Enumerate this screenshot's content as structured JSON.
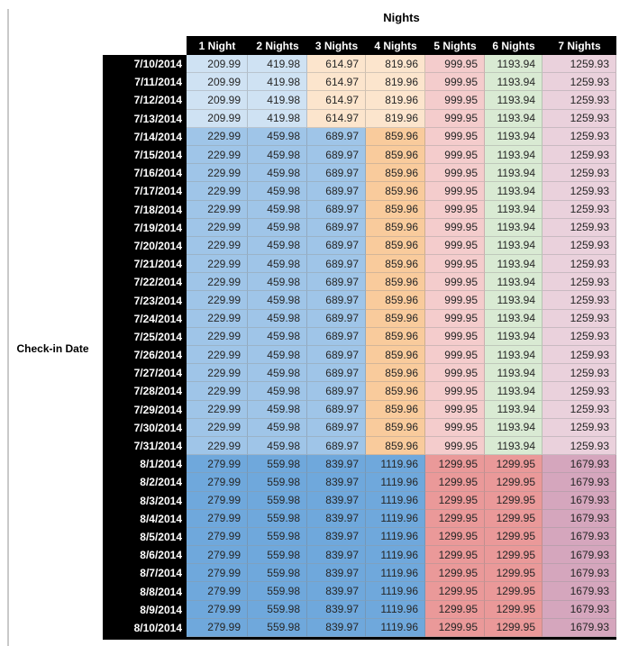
{
  "title": "Nights",
  "row_axis_label": "Check-in Date",
  "palette": {
    "light_blue": "#CFE2F3",
    "medium_blue": "#9FC5E8",
    "dark_blue": "#6FA8DC",
    "light_orange": "#FCE5CD",
    "medium_orange": "#F9CB9C",
    "light_red": "#F4CCCC",
    "medium_red": "#EA9999",
    "light_green": "#D9EAD3",
    "light_magenta": "#EAD1DC",
    "medium_magenta": "#D5A6BD",
    "header_bg": "#000000",
    "header_text": "#FFFFFF",
    "cell_text": "#262626"
  },
  "chart_data": {
    "type": "heatmap",
    "title": "Nights",
    "row_label": "Check-in Date",
    "columns": [
      "1 Night",
      "2 Nights",
      "3 Nights",
      "4 Nights",
      "5 Nights",
      "6 Nights",
      "7 Nights"
    ],
    "color_groups": {
      "A": [
        "#CFE2F3",
        "#CFE2F3",
        "#FCE5CD",
        "#FCE5CD",
        "#F4CCCC",
        "#D9EAD3",
        "#EAD1DC"
      ],
      "B": [
        "#9FC5E8",
        "#9FC5E8",
        "#9FC5E8",
        "#F9CB9C",
        "#F4CCCC",
        "#D9EAD3",
        "#EAD1DC"
      ],
      "C": [
        "#6FA8DC",
        "#6FA8DC",
        "#6FA8DC",
        "#6FA8DC",
        "#EA9999",
        "#EA9999",
        "#D5A6BD"
      ]
    },
    "rows": [
      {
        "date": "7/10/2014",
        "fill": "A",
        "values": [
          209.99,
          419.98,
          614.97,
          819.96,
          999.95,
          1193.94,
          1259.93
        ]
      },
      {
        "date": "7/11/2014",
        "fill": "A",
        "values": [
          209.99,
          419.98,
          614.97,
          819.96,
          999.95,
          1193.94,
          1259.93
        ]
      },
      {
        "date": "7/12/2014",
        "fill": "A",
        "values": [
          209.99,
          419.98,
          614.97,
          819.96,
          999.95,
          1193.94,
          1259.93
        ]
      },
      {
        "date": "7/13/2014",
        "fill": "A",
        "values": [
          209.99,
          419.98,
          614.97,
          819.96,
          999.95,
          1193.94,
          1259.93
        ]
      },
      {
        "date": "7/14/2014",
        "fill": "B",
        "values": [
          229.99,
          459.98,
          689.97,
          859.96,
          999.95,
          1193.94,
          1259.93
        ]
      },
      {
        "date": "7/15/2014",
        "fill": "B",
        "values": [
          229.99,
          459.98,
          689.97,
          859.96,
          999.95,
          1193.94,
          1259.93
        ]
      },
      {
        "date": "7/16/2014",
        "fill": "B",
        "values": [
          229.99,
          459.98,
          689.97,
          859.96,
          999.95,
          1193.94,
          1259.93
        ]
      },
      {
        "date": "7/17/2014",
        "fill": "B",
        "values": [
          229.99,
          459.98,
          689.97,
          859.96,
          999.95,
          1193.94,
          1259.93
        ]
      },
      {
        "date": "7/18/2014",
        "fill": "B",
        "values": [
          229.99,
          459.98,
          689.97,
          859.96,
          999.95,
          1193.94,
          1259.93
        ]
      },
      {
        "date": "7/19/2014",
        "fill": "B",
        "values": [
          229.99,
          459.98,
          689.97,
          859.96,
          999.95,
          1193.94,
          1259.93
        ]
      },
      {
        "date": "7/20/2014",
        "fill": "B",
        "values": [
          229.99,
          459.98,
          689.97,
          859.96,
          999.95,
          1193.94,
          1259.93
        ]
      },
      {
        "date": "7/21/2014",
        "fill": "B",
        "values": [
          229.99,
          459.98,
          689.97,
          859.96,
          999.95,
          1193.94,
          1259.93
        ]
      },
      {
        "date": "7/22/2014",
        "fill": "B",
        "values": [
          229.99,
          459.98,
          689.97,
          859.96,
          999.95,
          1193.94,
          1259.93
        ]
      },
      {
        "date": "7/23/2014",
        "fill": "B",
        "values": [
          229.99,
          459.98,
          689.97,
          859.96,
          999.95,
          1193.94,
          1259.93
        ]
      },
      {
        "date": "7/24/2014",
        "fill": "B",
        "values": [
          229.99,
          459.98,
          689.97,
          859.96,
          999.95,
          1193.94,
          1259.93
        ]
      },
      {
        "date": "7/25/2014",
        "fill": "B",
        "values": [
          229.99,
          459.98,
          689.97,
          859.96,
          999.95,
          1193.94,
          1259.93
        ]
      },
      {
        "date": "7/26/2014",
        "fill": "B",
        "values": [
          229.99,
          459.98,
          689.97,
          859.96,
          999.95,
          1193.94,
          1259.93
        ]
      },
      {
        "date": "7/27/2014",
        "fill": "B",
        "values": [
          229.99,
          459.98,
          689.97,
          859.96,
          999.95,
          1193.94,
          1259.93
        ]
      },
      {
        "date": "7/28/2014",
        "fill": "B",
        "values": [
          229.99,
          459.98,
          689.97,
          859.96,
          999.95,
          1193.94,
          1259.93
        ]
      },
      {
        "date": "7/29/2014",
        "fill": "B",
        "values": [
          229.99,
          459.98,
          689.97,
          859.96,
          999.95,
          1193.94,
          1259.93
        ]
      },
      {
        "date": "7/30/2014",
        "fill": "B",
        "values": [
          229.99,
          459.98,
          689.97,
          859.96,
          999.95,
          1193.94,
          1259.93
        ]
      },
      {
        "date": "7/31/2014",
        "fill": "B",
        "values": [
          229.99,
          459.98,
          689.97,
          859.96,
          999.95,
          1193.94,
          1259.93
        ]
      },
      {
        "date": "8/1/2014",
        "fill": "C",
        "values": [
          279.99,
          559.98,
          839.97,
          1119.96,
          1299.95,
          1299.95,
          1679.93
        ]
      },
      {
        "date": "8/2/2014",
        "fill": "C",
        "values": [
          279.99,
          559.98,
          839.97,
          1119.96,
          1299.95,
          1299.95,
          1679.93
        ]
      },
      {
        "date": "8/3/2014",
        "fill": "C",
        "values": [
          279.99,
          559.98,
          839.97,
          1119.96,
          1299.95,
          1299.95,
          1679.93
        ]
      },
      {
        "date": "8/4/2014",
        "fill": "C",
        "values": [
          279.99,
          559.98,
          839.97,
          1119.96,
          1299.95,
          1299.95,
          1679.93
        ]
      },
      {
        "date": "8/5/2014",
        "fill": "C",
        "values": [
          279.99,
          559.98,
          839.97,
          1119.96,
          1299.95,
          1299.95,
          1679.93
        ]
      },
      {
        "date": "8/6/2014",
        "fill": "C",
        "values": [
          279.99,
          559.98,
          839.97,
          1119.96,
          1299.95,
          1299.95,
          1679.93
        ]
      },
      {
        "date": "8/7/2014",
        "fill": "C",
        "values": [
          279.99,
          559.98,
          839.97,
          1119.96,
          1299.95,
          1299.95,
          1679.93
        ]
      },
      {
        "date": "8/8/2014",
        "fill": "C",
        "values": [
          279.99,
          559.98,
          839.97,
          1119.96,
          1299.95,
          1299.95,
          1679.93
        ]
      },
      {
        "date": "8/9/2014",
        "fill": "C",
        "values": [
          279.99,
          559.98,
          839.97,
          1119.96,
          1299.95,
          1299.95,
          1679.93
        ]
      },
      {
        "date": "8/10/2014",
        "fill": "C",
        "values": [
          279.99,
          559.98,
          839.97,
          1119.96,
          1299.95,
          1299.95,
          1679.93
        ]
      }
    ]
  }
}
